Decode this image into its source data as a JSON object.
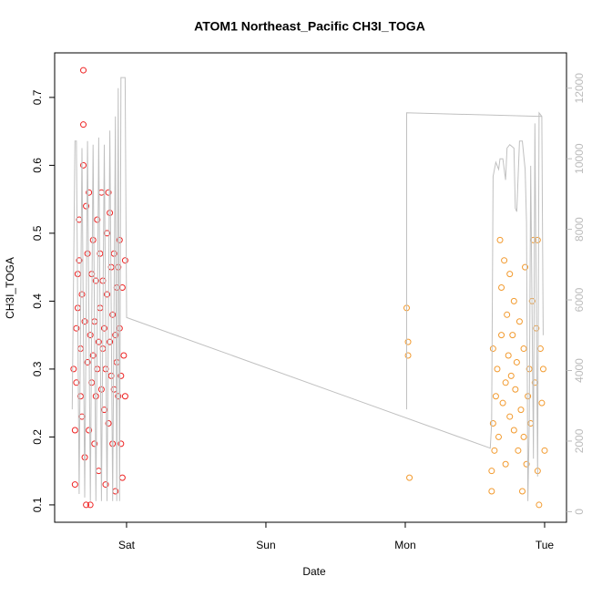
{
  "chart_data": {
    "type": "scatter",
    "title": "ATOM1 Northeast_Pacific CH3I_TOGA",
    "x_label": "Date",
    "y_label": "CH3I_TOGA",
    "xlim": [
      -0.516,
      3.157
    ],
    "xticks": [
      {
        "value": 0,
        "label": "Sat"
      },
      {
        "value": 1,
        "label": "Sun"
      },
      {
        "value": 2,
        "label": "Mon"
      },
      {
        "value": 3,
        "label": "Tue"
      }
    ],
    "ylim": [
      0.0744,
      0.7656
    ],
    "yticks": [
      0.1,
      0.2,
      0.3,
      0.4,
      0.5,
      0.6,
      0.7
    ],
    "y2lim": [
      -300,
      13000
    ],
    "y2ticks": [
      0,
      2000,
      4000,
      6000,
      8000,
      10000,
      12000
    ],
    "series": [
      {
        "color": "#ee2222",
        "marker": "circle",
        "x": [
          -0.38,
          -0.37,
          -0.37,
          -0.36,
          -0.36,
          -0.35,
          -0.35,
          -0.34,
          -0.34,
          -0.33,
          -0.33,
          -0.32,
          -0.32,
          -0.31,
          -0.31,
          -0.31,
          -0.3,
          -0.3,
          -0.29,
          -0.29,
          -0.28,
          -0.28,
          -0.27,
          -0.27,
          -0.26,
          -0.26,
          -0.25,
          -0.25,
          -0.24,
          -0.24,
          -0.23,
          -0.23,
          -0.22,
          -0.22,
          -0.21,
          -0.21,
          -0.2,
          -0.2,
          -0.19,
          -0.19,
          -0.18,
          -0.18,
          -0.17,
          -0.17,
          -0.16,
          -0.16,
          -0.15,
          -0.15,
          -0.14,
          -0.14,
          -0.13,
          -0.13,
          -0.12,
          -0.12,
          -0.11,
          -0.11,
          -0.1,
          -0.1,
          -0.09,
          -0.09,
          -0.08,
          -0.08,
          -0.07,
          -0.07,
          -0.06,
          -0.06,
          -0.05,
          -0.05,
          -0.04,
          -0.04,
          -0.03,
          -0.03,
          -0.02,
          -0.01,
          -0.01
        ],
        "values": [
          0.3,
          0.21,
          0.13,
          0.28,
          0.36,
          0.44,
          0.39,
          0.46,
          0.52,
          0.26,
          0.33,
          0.23,
          0.41,
          0.74,
          0.66,
          0.6,
          0.37,
          0.17,
          0.1,
          0.54,
          0.47,
          0.31,
          0.56,
          0.21,
          0.35,
          0.1,
          0.44,
          0.28,
          0.49,
          0.32,
          0.37,
          0.19,
          0.43,
          0.26,
          0.3,
          0.52,
          0.34,
          0.15,
          0.47,
          0.39,
          0.56,
          0.27,
          0.33,
          0.43,
          0.24,
          0.36,
          0.3,
          0.13,
          0.41,
          0.5,
          0.56,
          0.22,
          0.34,
          0.53,
          0.29,
          0.45,
          0.19,
          0.38,
          0.27,
          0.47,
          0.35,
          0.12,
          0.42,
          0.31,
          0.45,
          0.26,
          0.49,
          0.36,
          0.19,
          0.29,
          0.42,
          0.14,
          0.32,
          0.46,
          0.26
        ]
      },
      {
        "color": "#f29a2e",
        "marker": "circle",
        "x": [
          2.01,
          2.02,
          2.02,
          2.03,
          2.62,
          2.62,
          2.63,
          2.63,
          2.64,
          2.65,
          2.66,
          2.67,
          2.68,
          2.69,
          2.69,
          2.7,
          2.71,
          2.72,
          2.72,
          2.73,
          2.74,
          2.75,
          2.75,
          2.76,
          2.77,
          2.78,
          2.78,
          2.79,
          2.8,
          2.81,
          2.82,
          2.83,
          2.84,
          2.85,
          2.85,
          2.86,
          2.87,
          2.88,
          2.89,
          2.9,
          2.91,
          2.92,
          2.93,
          2.94,
          2.95,
          2.95,
          2.96,
          2.97,
          2.98,
          2.99,
          3.0
        ],
        "values": [
          0.39,
          0.34,
          0.32,
          0.14,
          0.15,
          0.12,
          0.33,
          0.22,
          0.18,
          0.26,
          0.3,
          0.2,
          0.49,
          0.42,
          0.35,
          0.25,
          0.46,
          0.28,
          0.16,
          0.38,
          0.32,
          0.44,
          0.23,
          0.29,
          0.35,
          0.21,
          0.4,
          0.27,
          0.31,
          0.18,
          0.37,
          0.24,
          0.12,
          0.2,
          0.33,
          0.45,
          0.16,
          0.26,
          0.3,
          0.22,
          0.4,
          0.49,
          0.28,
          0.36,
          0.49,
          0.15,
          0.1,
          0.33,
          0.25,
          0.3,
          0.18
        ]
      },
      {
        "color": "#c0c0c0",
        "marker": "line",
        "axis": "y2",
        "x": [
          -0.39,
          -0.37,
          -0.36,
          -0.34,
          -0.32,
          -0.3,
          -0.28,
          -0.26,
          -0.24,
          -0.22,
          -0.2,
          -0.18,
          -0.16,
          -0.14,
          -0.12,
          -0.1,
          -0.08,
          -0.07,
          -0.06,
          -0.05,
          -0.04,
          -0.01,
          0.0,
          2.61,
          2.62,
          2.63,
          2.65,
          2.67,
          2.68,
          2.7,
          2.72,
          2.73,
          2.75,
          2.78,
          2.79,
          2.8,
          2.82,
          2.84,
          2.86,
          2.87,
          2.88,
          2.89,
          2.9,
          2.92,
          2.93,
          2.95,
          2.96,
          2.98,
          2.99,
          null,
          2.01,
          2.01,
          2.98
        ],
        "values": [
          2900,
          10500,
          10500,
          500,
          10300,
          400,
          10500,
          300,
          10400,
          300,
          10600,
          300,
          10400,
          300,
          10800,
          300,
          11200,
          300,
          12000,
          300,
          12300,
          12300,
          5500,
          1800,
          2500,
          9500,
          9900,
          9700,
          10000,
          10000,
          9400,
          10300,
          10400,
          10300,
          8600,
          8500,
          10500,
          10500,
          9700,
          8200,
          300,
          2500,
          9800,
          1500,
          11000,
          1000,
          11300,
          11200,
          5000,
          null,
          2900,
          11300,
          11200
        ]
      }
    ]
  }
}
